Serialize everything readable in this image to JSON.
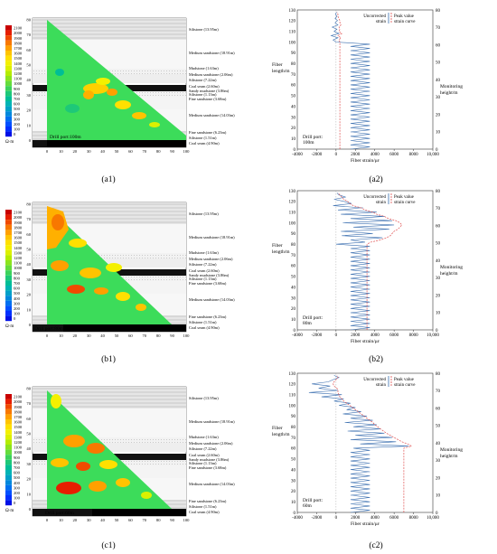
{
  "figure": {
    "panel_labels": [
      "(a1)",
      "(a2)",
      "(b1)",
      "(b2)",
      "(c1)",
      "(c2)"
    ],
    "rows": [
      {
        "drill_port_left": "Drill port:100m",
        "drill_port_right": [
          "Drill port:",
          "100m"
        ]
      },
      {
        "drill_port_left": "Drill port:80m",
        "drill_port_right": [
          "Drill port:",
          "80m"
        ]
      },
      {
        "drill_port_left": "Drill port:60m",
        "drill_port_right": [
          "Drill port:",
          "60m"
        ]
      }
    ]
  },
  "colorbar": {
    "ticks": [
      "2100",
      "2000",
      "1900",
      "1800",
      "1700",
      "1600",
      "1500",
      "1400",
      "1300",
      "1200",
      "1100",
      "1000",
      "900",
      "800",
      "700",
      "600",
      "500",
      "400",
      "300",
      "200",
      "100",
      "0"
    ],
    "unit": "Ω·m",
    "colors": [
      "#c80000",
      "#e61e00",
      "#f04a00",
      "#f87800",
      "#ffa000",
      "#ffc400",
      "#ffe000",
      "#f4f000",
      "#dcf000",
      "#b4ec00",
      "#8ce41e",
      "#64dc3c",
      "#3cd25a",
      "#1ec878",
      "#00be96",
      "#00b4b4",
      "#00a0c8",
      "#0088dc",
      "#0070f0",
      "#0050ff",
      "#0030ff",
      "#0010e6"
    ]
  },
  "strata": {
    "labels": [
      "Siltstone (13.95m)",
      "Medium sandstone (18.91m)",
      "Mudstone (1.63m)",
      "Medium sandstone (2.06m)",
      "Siltstone (7.22m)",
      "Coal seam (2.60m)",
      "Sandy mudstone (3.86m)",
      "Siltstone (1.13m)",
      "Fine sandstone (3.68m)",
      "Medium sandstone (14.03m)",
      "Fine sandstone (6.23m)",
      "Siltstone (1.51m)",
      "Coal seam (4.90m)"
    ]
  },
  "section_axes": {
    "x_ticks": [
      "0",
      "10",
      "20",
      "30",
      "40",
      "50",
      "60",
      "70",
      "80",
      "90",
      "100"
    ],
    "y_ticks": [
      "0",
      "10",
      "20",
      "30",
      "40",
      "50",
      "60",
      "70",
      "80"
    ]
  },
  "strain_axes": {
    "x_label": "Fiber strain/με",
    "x_ticks": [
      "-4000",
      "-2000",
      "0",
      "2000",
      "4000",
      "6000",
      "8000",
      "10,000"
    ],
    "left_label": [
      "Fiber",
      "length/m"
    ],
    "left_ticks": [
      "0",
      "10",
      "20",
      "30",
      "40",
      "50",
      "60",
      "70",
      "80",
      "90",
      "100",
      "110",
      "120",
      "130"
    ],
    "right_label": [
      "Monitoring",
      "height/m"
    ],
    "right_ticks": [
      "0",
      "10",
      "20",
      "30",
      "40",
      "50",
      "60",
      "70",
      "80"
    ],
    "legend_uncorrected": [
      "Uncorrected",
      "strain"
    ],
    "legend_peak": [
      "Peak value",
      "strain curve"
    ]
  },
  "chart_data": [
    {
      "type": "line",
      "panel": "(a2)",
      "xlabel": "Fiber strain/με",
      "ylabel": "Fiber length/m",
      "xlim": [
        -4000,
        10000
      ],
      "ylim": [
        0,
        130
      ],
      "series": [
        {
          "name": "Uncorrected strain",
          "points": [
            [
              0,
              100
            ],
            [
              -300,
              102
            ],
            [
              200,
              104
            ],
            [
              -500,
              106
            ],
            [
              300,
              108
            ],
            [
              -200,
              110
            ],
            [
              100,
              112
            ],
            [
              -400,
              114
            ],
            [
              200,
              116
            ],
            [
              -100,
              118
            ],
            [
              150,
              120
            ],
            [
              -100,
              122
            ],
            [
              100,
              124
            ],
            [
              -50,
              126
            ],
            [
              50,
              128
            ]
          ]
        },
        {
          "name": "Peak value strain curve",
          "points": [
            [
              400,
              100
            ],
            [
              300,
              102
            ],
            [
              500,
              104
            ],
            [
              200,
              106
            ],
            [
              600,
              108
            ],
            [
              300,
              110
            ],
            [
              400,
              112
            ],
            [
              300,
              114
            ],
            [
              500,
              116
            ],
            [
              400,
              118
            ],
            [
              400,
              120
            ],
            [
              300,
              122
            ],
            [
              200,
              124
            ],
            [
              200,
              126
            ],
            [
              100,
              128
            ]
          ]
        }
      ]
    },
    {
      "type": "line",
      "panel": "(b2)",
      "xlabel": "Fiber strain/με",
      "ylabel": "Fiber length/m",
      "xlim": [
        -4000,
        10000
      ],
      "ylim": [
        0,
        130
      ],
      "series": [
        {
          "name": "Uncorrected strain",
          "points": [
            [
              0,
              80
            ],
            [
              3000,
              82
            ],
            [
              1500,
              84
            ],
            [
              4800,
              86
            ],
            [
              600,
              88
            ],
            [
              3800,
              90
            ],
            [
              500,
              92
            ],
            [
              5500,
              94
            ],
            [
              1800,
              96
            ],
            [
              6000,
              98
            ],
            [
              700,
              100
            ],
            [
              5800,
              102
            ],
            [
              1500,
              104
            ],
            [
              5000,
              106
            ],
            [
              500,
              108
            ],
            [
              4200,
              110
            ],
            [
              200,
              112
            ],
            [
              2800,
              114
            ],
            [
              -300,
              116
            ],
            [
              1600,
              118
            ],
            [
              800,
              120
            ],
            [
              -200,
              122
            ],
            [
              1000,
              124
            ],
            [
              300,
              126
            ],
            [
              100,
              128
            ]
          ]
        },
        {
          "name": "Peak value strain curve",
          "points": [
            [
              3200,
              80
            ],
            [
              3600,
              82
            ],
            [
              4600,
              84
            ],
            [
              5200,
              86
            ],
            [
              5600,
              88
            ],
            [
              5800,
              90
            ],
            [
              6000,
              92
            ],
            [
              6400,
              94
            ],
            [
              6600,
              96
            ],
            [
              6800,
              98
            ],
            [
              6600,
              100
            ],
            [
              6200,
              102
            ],
            [
              5400,
              104
            ],
            [
              5000,
              106
            ],
            [
              4200,
              108
            ],
            [
              3800,
              110
            ],
            [
              3000,
              112
            ],
            [
              2600,
              114
            ],
            [
              1800,
              116
            ],
            [
              1400,
              118
            ],
            [
              1200,
              120
            ],
            [
              800,
              122
            ],
            [
              600,
              124
            ],
            [
              400,
              126
            ],
            [
              200,
              128
            ]
          ]
        }
      ]
    },
    {
      "type": "line",
      "panel": "(c2)",
      "xlabel": "Fiber strain/με",
      "ylabel": "Fiber length/m",
      "xlim": [
        -4000,
        10000
      ],
      "ylim": [
        0,
        130
      ],
      "series": [
        {
          "name": "Uncorrected strain",
          "points": [
            [
              1800,
              60
            ],
            [
              7500,
              62
            ],
            [
              2500,
              64
            ],
            [
              6200,
              66
            ],
            [
              1500,
              68
            ],
            [
              5800,
              70
            ],
            [
              2000,
              72
            ],
            [
              5000,
              74
            ],
            [
              1200,
              76
            ],
            [
              4600,
              78
            ],
            [
              1800,
              80
            ],
            [
              4200,
              82
            ],
            [
              900,
              84
            ],
            [
              3800,
              86
            ],
            [
              1500,
              88
            ],
            [
              3200,
              90
            ],
            [
              700,
              92
            ],
            [
              2600,
              94
            ],
            [
              1100,
              96
            ],
            [
              2000,
              98
            ],
            [
              300,
              100
            ],
            [
              1500,
              102
            ],
            [
              -200,
              104
            ],
            [
              800,
              106
            ],
            [
              -1500,
              108
            ],
            [
              600,
              110
            ],
            [
              -2800,
              112
            ],
            [
              200,
              114
            ],
            [
              -1800,
              116
            ],
            [
              -600,
              118
            ],
            [
              -2500,
              120
            ],
            [
              -800,
              122
            ],
            [
              -300,
              124
            ],
            [
              300,
              126
            ],
            [
              -200,
              128
            ]
          ]
        },
        {
          "name": "Peak value strain curve",
          "points": [
            [
              7000,
              60
            ],
            [
              7800,
              62
            ],
            [
              7400,
              64
            ],
            [
              6800,
              66
            ],
            [
              6400,
              68
            ],
            [
              6000,
              70
            ],
            [
              5600,
              72
            ],
            [
              5200,
              74
            ],
            [
              4900,
              76
            ],
            [
              4600,
              78
            ],
            [
              4300,
              80
            ],
            [
              4000,
              82
            ],
            [
              3800,
              84
            ],
            [
              3500,
              86
            ],
            [
              3200,
              88
            ],
            [
              2900,
              90
            ],
            [
              2600,
              92
            ],
            [
              2300,
              94
            ],
            [
              2000,
              96
            ],
            [
              1700,
              98
            ],
            [
              1400,
              100
            ],
            [
              1100,
              102
            ],
            [
              800,
              104
            ],
            [
              600,
              106
            ],
            [
              400,
              108
            ],
            [
              300,
              110
            ],
            [
              200,
              112
            ],
            [
              200,
              114
            ],
            [
              100,
              116
            ],
            [
              -200,
              118
            ],
            [
              -300,
              120
            ],
            [
              -200,
              122
            ],
            [
              0,
              124
            ],
            [
              200,
              126
            ],
            [
              100,
              128
            ]
          ]
        }
      ]
    }
  ]
}
